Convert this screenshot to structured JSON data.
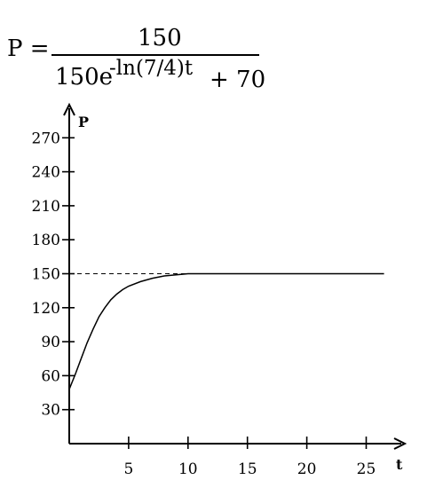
{
  "formula": {
    "lhs": "P =",
    "numerator": "150",
    "denominator_base": "150e",
    "exponent": "-ln(7/4)t",
    "denominator_tail": "+ 70"
  },
  "chart_data": {
    "type": "line",
    "xlabel": "t",
    "ylabel": "P",
    "xlim": [
      0,
      27
    ],
    "ylim": [
      0,
      290
    ],
    "x_ticks": [
      5,
      10,
      15,
      20,
      25
    ],
    "y_ticks": [
      30,
      60,
      90,
      120,
      150,
      180,
      210,
      240,
      270
    ],
    "asymptote": {
      "y": 150,
      "style": "dashed"
    },
    "series": [
      {
        "x": [
          0,
          0.5,
          1,
          1.5,
          2,
          2.5,
          3,
          3.5,
          4,
          4.5,
          5,
          6,
          7,
          8,
          9,
          10,
          11,
          12,
          14,
          16,
          18,
          20,
          22,
          24,
          26.5
        ],
        "y": [
          48,
          61,
          75,
          89,
          101,
          112,
          120,
          127,
          132,
          136,
          139,
          143,
          146,
          148,
          149,
          150,
          150,
          150,
          150,
          150,
          150,
          150,
          150,
          150,
          150
        ]
      }
    ],
    "grid": false
  }
}
